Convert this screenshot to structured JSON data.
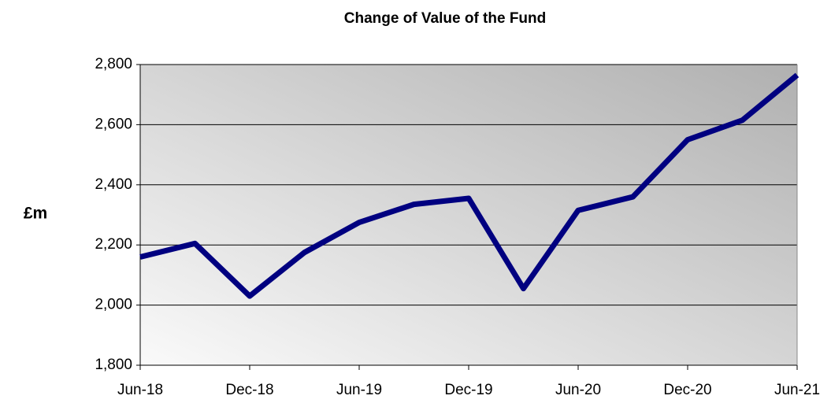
{
  "chart_data": {
    "type": "line",
    "title": "Change of Value of the Fund",
    "y_label": "£m",
    "categories": [
      "Jun-18",
      null,
      "Dec-18",
      null,
      "Jun-19",
      null,
      "Dec-19",
      null,
      "Jun-20",
      null,
      "Dec-20",
      null,
      "Jun-21"
    ],
    "values": [
      2160,
      2205,
      2030,
      2175,
      2275,
      2335,
      2355,
      2055,
      2315,
      2360,
      2550,
      2615,
      2765
    ],
    "color": "#000080",
    "ylim": [
      1800,
      2800
    ],
    "yticks": [
      {
        "value": 1800,
        "label": "1,800"
      },
      {
        "value": 2000,
        "label": "2,000"
      },
      {
        "value": 2200,
        "label": "2,200"
      },
      {
        "value": 2400,
        "label": "2,400"
      },
      {
        "value": 2600,
        "label": "2,600"
      },
      {
        "value": 2800,
        "label": "2,800"
      }
    ],
    "grid": true
  }
}
